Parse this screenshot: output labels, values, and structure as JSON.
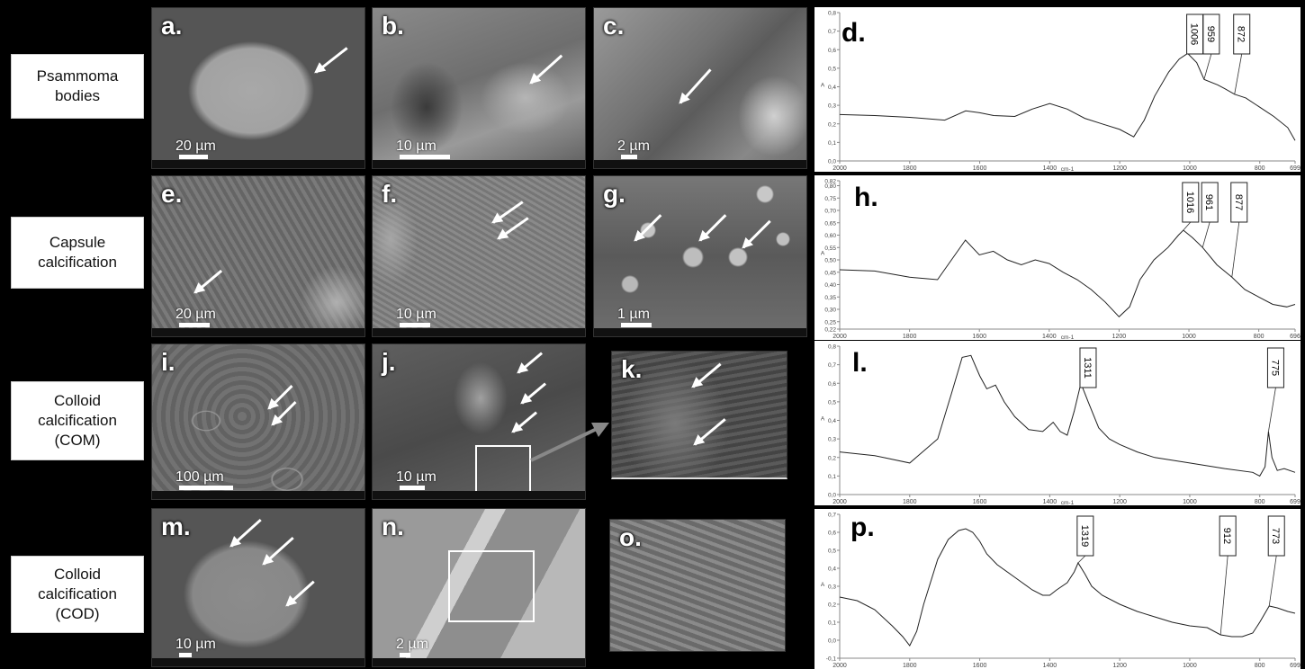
{
  "rows": [
    {
      "label_lines": [
        "Psammoma",
        "bodies"
      ]
    },
    {
      "label_lines": [
        "Capsule",
        "calcification"
      ]
    },
    {
      "label_lines": [
        "Colloid",
        "calcification",
        "(COM)"
      ]
    },
    {
      "label_lines": [
        "Colloid",
        "calcification",
        "(COD)"
      ]
    }
  ],
  "panels": [
    {
      "letter": "a.",
      "scale": "20 µm"
    },
    {
      "letter": "b.",
      "scale": "10 µm"
    },
    {
      "letter": "c.",
      "scale": "2 µm"
    },
    {
      "letter": "e.",
      "scale": "20 µm"
    },
    {
      "letter": "f.",
      "scale": "10 µm"
    },
    {
      "letter": "g.",
      "scale": "1 µm"
    },
    {
      "letter": "i.",
      "scale": "100 µm"
    },
    {
      "letter": "j.",
      "scale": "10 µm"
    },
    {
      "letter": "k.",
      "scale": ""
    },
    {
      "letter": "m.",
      "scale": "10 µm"
    },
    {
      "letter": "n.",
      "scale": "2 µm"
    },
    {
      "letter": "o.",
      "scale": ""
    }
  ],
  "chart_data": [
    {
      "type": "line",
      "panel": "d.",
      "xlabel": "cm-1",
      "ylabel": "A",
      "xlim": [
        2000,
        699
      ],
      "ylim": [
        0,
        0.8
      ],
      "x_ticks": [
        "2000",
        "1800",
        "1600",
        "1400",
        "1200",
        "1000",
        "800",
        "699"
      ],
      "y_ticks": [
        "0,0",
        "0,1",
        "0,2",
        "0,3",
        "0,4",
        "0,5",
        "0,6",
        "0,7",
        "0,8"
      ],
      "peaks": [
        {
          "label": "1006",
          "x": 1006,
          "y": 0.58
        },
        {
          "label": "959",
          "x": 959,
          "y": 0.44
        },
        {
          "label": "872",
          "x": 872,
          "y": 0.36
        }
      ],
      "x": [
        2000,
        1900,
        1800,
        1700,
        1640,
        1600,
        1560,
        1500,
        1450,
        1400,
        1350,
        1300,
        1250,
        1200,
        1160,
        1130,
        1100,
        1060,
        1030,
        1006,
        980,
        959,
        920,
        900,
        872,
        840,
        800,
        760,
        720,
        699
      ],
      "y": [
        0.25,
        0.245,
        0.235,
        0.22,
        0.27,
        0.26,
        0.245,
        0.24,
        0.28,
        0.31,
        0.28,
        0.23,
        0.2,
        0.17,
        0.13,
        0.22,
        0.35,
        0.48,
        0.55,
        0.58,
        0.53,
        0.44,
        0.41,
        0.39,
        0.36,
        0.34,
        0.29,
        0.24,
        0.18,
        0.11
      ]
    },
    {
      "type": "line",
      "panel": "h.",
      "xlabel": "cm-1",
      "ylabel": "A",
      "xlim": [
        2000,
        696
      ],
      "ylim": [
        0.22,
        0.82
      ],
      "x_ticks": [
        "2000",
        "1800",
        "1600",
        "1400",
        "1200",
        "1000",
        "800",
        "696"
      ],
      "y_ticks": [
        "0,22",
        "0,25",
        "0,30",
        "0,35",
        "0,40",
        "0,45",
        "0,50",
        "0,55",
        "0,60",
        "0,65",
        "0,70",
        "0,75",
        "0,80",
        "0,82"
      ],
      "peaks": [
        {
          "label": "1016",
          "x": 1016,
          "y": 0.62
        },
        {
          "label": "961",
          "x": 961,
          "y": 0.55
        },
        {
          "label": "877",
          "x": 877,
          "y": 0.43
        }
      ],
      "x": [
        2000,
        1900,
        1800,
        1720,
        1680,
        1640,
        1600,
        1560,
        1520,
        1480,
        1440,
        1400,
        1360,
        1320,
        1280,
        1240,
        1200,
        1170,
        1140,
        1100,
        1060,
        1030,
        1016,
        990,
        961,
        920,
        877,
        840,
        800,
        760,
        720,
        696
      ],
      "y": [
        0.46,
        0.455,
        0.43,
        0.42,
        0.5,
        0.58,
        0.52,
        0.535,
        0.5,
        0.48,
        0.5,
        0.485,
        0.45,
        0.42,
        0.38,
        0.33,
        0.27,
        0.31,
        0.42,
        0.5,
        0.55,
        0.6,
        0.62,
        0.59,
        0.55,
        0.48,
        0.43,
        0.38,
        0.35,
        0.32,
        0.31,
        0.32
      ]
    },
    {
      "type": "line",
      "panel": "l.",
      "xlabel": "cm-1",
      "ylabel": "A",
      "xlim": [
        2000,
        699
      ],
      "ylim": [
        0,
        0.8
      ],
      "x_ticks": [
        "2000",
        "1800",
        "1600",
        "1400",
        "1200",
        "1000",
        "800",
        "699"
      ],
      "y_ticks": [
        "0,0",
        "0,1",
        "0,2",
        "0,3",
        "0,4",
        "0,5",
        "0,6",
        "0,7",
        "0,8"
      ],
      "peaks": [
        {
          "label": "1311",
          "x": 1311,
          "y": 0.6
        },
        {
          "label": "775",
          "x": 775,
          "y": 0.34
        }
      ],
      "x": [
        2000,
        1900,
        1800,
        1720,
        1680,
        1650,
        1625,
        1600,
        1580,
        1555,
        1530,
        1500,
        1460,
        1420,
        1390,
        1370,
        1350,
        1330,
        1311,
        1290,
        1260,
        1230,
        1200,
        1150,
        1100,
        1000,
        900,
        820,
        800,
        785,
        775,
        765,
        750,
        730,
        699
      ],
      "y": [
        0.23,
        0.21,
        0.17,
        0.3,
        0.55,
        0.74,
        0.75,
        0.64,
        0.57,
        0.59,
        0.5,
        0.42,
        0.35,
        0.34,
        0.39,
        0.34,
        0.32,
        0.45,
        0.6,
        0.5,
        0.36,
        0.3,
        0.27,
        0.23,
        0.2,
        0.17,
        0.14,
        0.12,
        0.1,
        0.15,
        0.34,
        0.2,
        0.13,
        0.14,
        0.12
      ]
    },
    {
      "type": "line",
      "panel": "p.",
      "xlabel": "",
      "ylabel": "A",
      "xlim": [
        2000,
        699
      ],
      "ylim": [
        -0.1,
        0.7
      ],
      "x_ticks": [
        "2000",
        "1800",
        "1600",
        "1400",
        "1200",
        "1000",
        "800",
        "699"
      ],
      "y_ticks": [
        "-0,1",
        "0,0",
        "0,1",
        "0,2",
        "0,3",
        "0,4",
        "0,5",
        "0,6",
        "0,7"
      ],
      "peaks": [
        {
          "label": "1319",
          "x": 1319,
          "y": 0.43
        },
        {
          "label": "912",
          "x": 912,
          "y": 0.03
        },
        {
          "label": "773",
          "x": 773,
          "y": 0.19
        }
      ],
      "x": [
        2000,
        1950,
        1900,
        1850,
        1820,
        1800,
        1780,
        1760,
        1720,
        1690,
        1660,
        1640,
        1620,
        1600,
        1580,
        1550,
        1500,
        1450,
        1420,
        1400,
        1380,
        1350,
        1330,
        1319,
        1300,
        1280,
        1250,
        1200,
        1150,
        1100,
        1050,
        1000,
        950,
        912,
        880,
        850,
        820,
        800,
        773,
        750,
        720,
        699
      ],
      "y": [
        0.24,
        0.22,
        0.17,
        0.08,
        0.02,
        -0.03,
        0.05,
        0.2,
        0.45,
        0.56,
        0.61,
        0.62,
        0.6,
        0.55,
        0.48,
        0.42,
        0.35,
        0.28,
        0.25,
        0.25,
        0.28,
        0.32,
        0.38,
        0.43,
        0.37,
        0.3,
        0.25,
        0.2,
        0.16,
        0.13,
        0.1,
        0.08,
        0.07,
        0.03,
        0.02,
        0.02,
        0.04,
        0.1,
        0.19,
        0.18,
        0.16,
        0.15
      ]
    }
  ]
}
